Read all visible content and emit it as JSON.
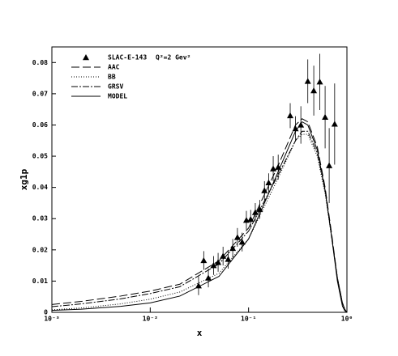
{
  "chart_data": {
    "type": "line",
    "xlabel": "x",
    "ylabel": "xg1p",
    "annotation": "Q²=2 Gev²",
    "log_x": true,
    "xlim": [
      0.001,
      1
    ],
    "ylim": [
      0,
      0.085
    ],
    "xticks": [
      {
        "value": 0.001,
        "label": "10⁻³"
      },
      {
        "value": 0.01,
        "label": "10⁻²"
      },
      {
        "value": 0.1,
        "label": "10⁻¹"
      },
      {
        "value": 1,
        "label": "10⁰"
      }
    ],
    "yticks": [
      0,
      0.01,
      0.02,
      0.03,
      0.04,
      0.05,
      0.06,
      0.07,
      0.08
    ],
    "legend": "upper left",
    "series": [
      {
        "name": "SLAC-E-143",
        "type": "scatter",
        "color": "#000000",
        "x": [
          0.031,
          0.035,
          0.039,
          0.044,
          0.049,
          0.055,
          0.062,
          0.069,
          0.077,
          0.086,
          0.095,
          0.105,
          0.117,
          0.13,
          0.145,
          0.16,
          0.178,
          0.2,
          0.265,
          0.3,
          0.34,
          0.4,
          0.46,
          0.53,
          0.6,
          0.66,
          0.75
        ],
        "values": [
          0.0085,
          0.0166,
          0.011,
          0.015,
          0.016,
          0.018,
          0.017,
          0.0205,
          0.024,
          0.0225,
          0.0295,
          0.0298,
          0.032,
          0.033,
          0.039,
          0.0415,
          0.046,
          0.0465,
          0.063,
          0.0588,
          0.06,
          0.074,
          0.071,
          0.0738,
          0.0625,
          0.047,
          0.0603
        ],
        "errors": [
          0.003,
          0.003,
          0.003,
          0.003,
          0.003,
          0.003,
          0.003,
          0.003,
          0.003,
          0.003,
          0.003,
          0.003,
          0.003,
          0.003,
          0.003,
          0.003,
          0.004,
          0.004,
          0.004,
          0.004,
          0.006,
          0.007,
          0.008,
          0.009,
          0.01,
          0.012,
          0.013
        ]
      },
      {
        "name": "AAC",
        "dash": "10 4",
        "color": "#000000",
        "x": [
          0.001,
          0.002,
          0.005,
          0.01,
          0.02,
          0.05,
          0.1,
          0.2,
          0.3,
          0.35,
          0.4,
          0.5,
          0.6,
          0.7,
          0.8,
          0.9,
          0.95,
          1
        ],
        "values": [
          0.0025,
          0.0035,
          0.0052,
          0.0068,
          0.009,
          0.0165,
          0.027,
          0.047,
          0.06,
          0.062,
          0.061,
          0.053,
          0.04,
          0.025,
          0.011,
          0.003,
          0.001,
          0
        ]
      },
      {
        "name": "BB",
        "dash": "1 2",
        "color": "#000000",
        "x": [
          0.001,
          0.002,
          0.005,
          0.01,
          0.02,
          0.05,
          0.1,
          0.2,
          0.3,
          0.35,
          0.4,
          0.5,
          0.6,
          0.7,
          0.8,
          0.9,
          0.95,
          1
        ],
        "values": [
          0.0008,
          0.0014,
          0.0027,
          0.0042,
          0.0065,
          0.0125,
          0.0235,
          0.043,
          0.055,
          0.057,
          0.057,
          0.05,
          0.038,
          0.024,
          0.011,
          0.003,
          0.001,
          0
        ]
      },
      {
        "name": "GRSV",
        "dash": "8 2 2 2",
        "color": "#000000",
        "x": [
          0.001,
          0.002,
          0.005,
          0.01,
          0.02,
          0.05,
          0.1,
          0.2,
          0.3,
          0.35,
          0.4,
          0.5,
          0.6,
          0.7,
          0.8,
          0.9,
          0.95,
          1
        ],
        "values": [
          0.0018,
          0.0027,
          0.0043,
          0.006,
          0.0082,
          0.0155,
          0.026,
          0.044,
          0.055,
          0.058,
          0.058,
          0.051,
          0.039,
          0.024,
          0.011,
          0.003,
          0.001,
          0
        ]
      },
      {
        "name": "MODEL",
        "dash": "none",
        "color": "#000000",
        "x": [
          0.001,
          0.002,
          0.005,
          0.01,
          0.02,
          0.05,
          0.1,
          0.2,
          0.3,
          0.35,
          0.4,
          0.5,
          0.6,
          0.7,
          0.8,
          0.9,
          0.95,
          1
        ],
        "values": [
          0.0006,
          0.001,
          0.0019,
          0.003,
          0.0052,
          0.0115,
          0.0235,
          0.045,
          0.058,
          0.061,
          0.06,
          0.052,
          0.039,
          0.024,
          0.01,
          0.002,
          0.0005,
          0
        ]
      }
    ]
  }
}
